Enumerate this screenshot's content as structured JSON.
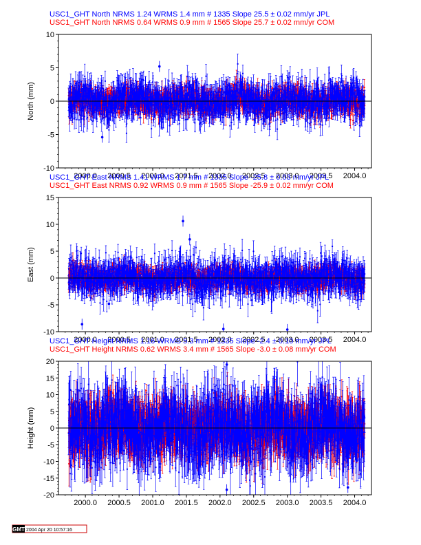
{
  "chart_data": [
    {
      "type": "scatter",
      "title_lines": [
        {
          "text": "USC1_GHT North NRMS 1.24 WRMS  1.4 mm # 1335 Slope   25.5 ±  0.02 mm/yr JPL",
          "color": "#0000ff"
        },
        {
          "text": "USC1_GHT North NRMS 0.64 WRMS  0.9 mm # 1565 Slope   25.7 ±  0.02 mm/yr COM",
          "color": "#ff0000"
        }
      ],
      "ylabel": "North (mm)",
      "xlim": [
        1999.6,
        2004.25
      ],
      "ylim": [
        -10,
        10
      ],
      "yticks": [
        -10,
        -5,
        0,
        5,
        10
      ],
      "xticks": [
        2000.0,
        2000.5,
        2001.0,
        2001.5,
        2002.0,
        2002.5,
        2003.0,
        2003.5,
        2004.0
      ],
      "xtick_labels": [
        "2000.0",
        "2000.5",
        "2001.0",
        "2001.5",
        "2002.0",
        "2002.5",
        "2003.0",
        "2003.5",
        "2004.0"
      ],
      "series": [
        {
          "name": "COM",
          "color": "#ff0000",
          "x_range": [
            1999.75,
            2004.15
          ],
          "count": 1565,
          "rms_mm": 0.9,
          "errbar_mm": 1.0
        },
        {
          "name": "JPL",
          "color": "#0000ff",
          "x_range": [
            1999.75,
            2004.15
          ],
          "count": 1335,
          "rms_mm": 1.4,
          "errbar_mm": 1.4
        }
      ],
      "outliers": [
        [
          2000.25,
          -5.4
        ],
        [
          2001.1,
          5.2
        ]
      ]
    },
    {
      "type": "scatter",
      "title_lines": [
        {
          "text": "USC1_GHT East NRMS 1.41 WRMS  1.7 mm # 1335 Slope  -25.8 ±  0.03 mm/yr JPL",
          "color": "#0000ff"
        },
        {
          "text": "USC1_GHT East NRMS 0.92 WRMS  0.9 mm # 1565 Slope  -25.9 ±  0.02 mm/yr COM",
          "color": "#ff0000"
        }
      ],
      "ylabel": "East (mm)",
      "xlim": [
        1999.6,
        2004.25
      ],
      "ylim": [
        -10,
        15
      ],
      "yticks": [
        -10,
        -5,
        0,
        5,
        10,
        15
      ],
      "xticks": [
        2000.0,
        2000.5,
        2001.0,
        2001.5,
        2002.0,
        2002.5,
        2003.0,
        2003.5,
        2004.0
      ],
      "xtick_labels": [
        "2000.0",
        "2000.5",
        "2001.0",
        "2001.5",
        "2002.0",
        "2002.5",
        "2003.0",
        "2003.5",
        "2004.0"
      ],
      "series": [
        {
          "name": "COM",
          "color": "#ff0000",
          "x_range": [
            1999.75,
            2004.15
          ],
          "count": 1565,
          "rms_mm": 0.9,
          "errbar_mm": 1.1
        },
        {
          "name": "JPL",
          "color": "#0000ff",
          "x_range": [
            1999.75,
            2004.15
          ],
          "count": 1335,
          "rms_mm": 1.7,
          "errbar_mm": 1.7
        }
      ],
      "outliers": [
        [
          2001.45,
          10.6
        ],
        [
          2001.55,
          7.2
        ],
        [
          1999.95,
          -8.6
        ],
        [
          2002.05,
          -9.5
        ],
        [
          2003.0,
          -9.6
        ],
        [
          2000.35,
          -4.8
        ]
      ]
    },
    {
      "type": "scatter",
      "title_lines": [
        {
          "text": "USC1_GHT Height NRMS 1.16 WRMS  5.3 mm # 1335 Slope   -2.4 ±  0.10 mm/yr JPL",
          "color": "#0000ff"
        },
        {
          "text": "USC1_GHT Height NRMS 0.62 WRMS  3.4 mm # 1565 Slope   -3.0 ±  0.08 mm/yr COM",
          "color": "#ff0000"
        }
      ],
      "ylabel": "Height (mm)",
      "xlim": [
        1999.6,
        2004.25
      ],
      "ylim": [
        -20,
        20
      ],
      "yticks": [
        -20,
        -15,
        -10,
        -5,
        0,
        5,
        10,
        15,
        20
      ],
      "xticks": [
        2000.0,
        2000.5,
        2001.0,
        2001.5,
        2002.0,
        2002.5,
        2003.0,
        2003.5,
        2004.0
      ],
      "xtick_labels": [
        "2000.0",
        "2000.5",
        "2001.0",
        "2001.5",
        "2002.0",
        "2002.5",
        "2003.0",
        "2003.5",
        "2004.0"
      ],
      "series": [
        {
          "name": "COM",
          "color": "#ff0000",
          "x_range": [
            1999.75,
            2004.15
          ],
          "count": 1565,
          "rms_mm": 3.4,
          "errbar_mm": 5.0
        },
        {
          "name": "JPL",
          "color": "#0000ff",
          "x_range": [
            1999.75,
            2004.15
          ],
          "count": 1335,
          "rms_mm": 5.3,
          "errbar_mm": 6.0
        }
      ],
      "outliers": [
        [
          2002.1,
          19.0
        ],
        [
          2002.1,
          -18.5
        ],
        [
          2003.9,
          -17.8
        ]
      ]
    }
  ],
  "gmt_stamp": {
    "logo": "GMT",
    "timestamp": "2004 Apr 20 10:57:16"
  }
}
